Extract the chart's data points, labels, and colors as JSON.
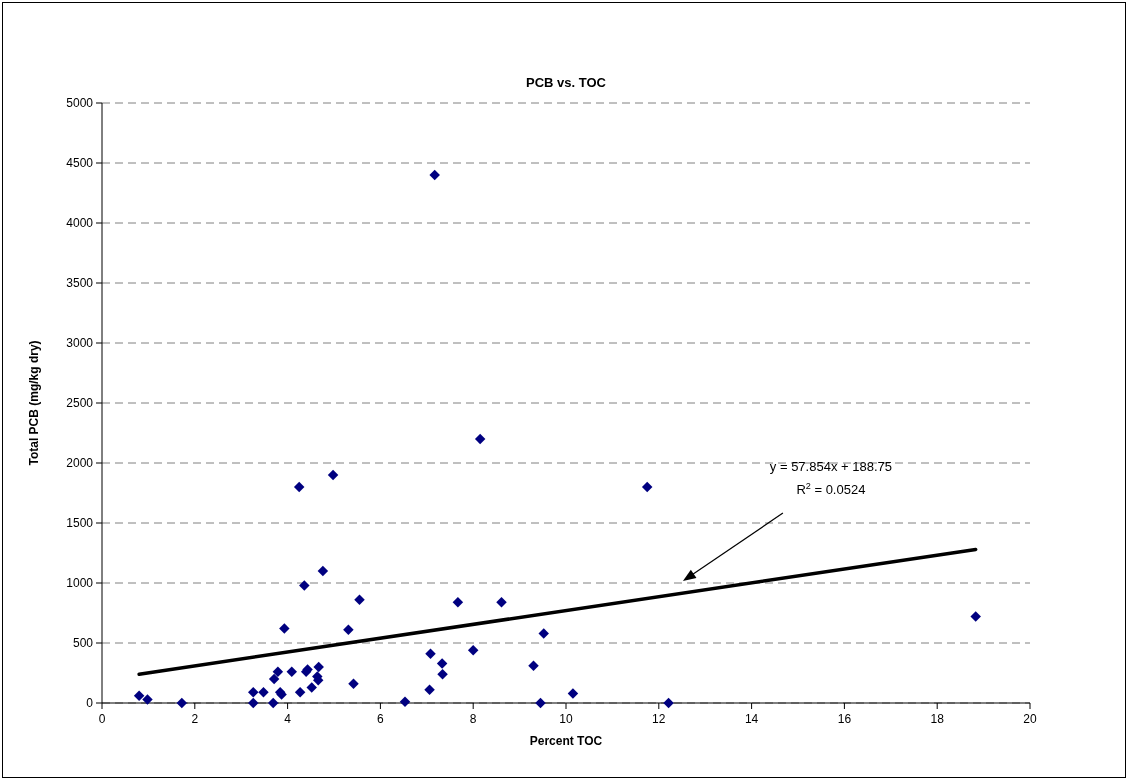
{
  "chart_data": {
    "type": "scatter",
    "title": "PCB vs. TOC",
    "xlabel": "Percent TOC",
    "ylabel": "Total PCB (mg/kg dry)",
    "xlim": [
      0,
      20
    ],
    "xticks": [
      0,
      2,
      4,
      6,
      8,
      10,
      12,
      14,
      16,
      18,
      20
    ],
    "ylim": [
      0,
      5000
    ],
    "yticks": [
      0,
      500,
      1000,
      1500,
      2000,
      2500,
      3000,
      3500,
      4000,
      4500,
      5000
    ],
    "grid": "y",
    "legend": false,
    "marker": "diamond",
    "annotations": [
      "y = 57.854x + 188.75\nR$^{2}$ = 0.0524"
    ],
    "series": [
      {
        "color": "#000080",
        "x": [
          0.8,
          0.98,
          1.72,
          3.26,
          3.26,
          3.48,
          3.69,
          3.71,
          3.79,
          3.84,
          3.87,
          3.93,
          4.09,
          4.27,
          4.36,
          4.4,
          4.43,
          4.52,
          4.64,
          4.66,
          4.67,
          4.76,
          5.31,
          5.42,
          5.55,
          6.53,
          7.06,
          7.08,
          7.33,
          7.34,
          7.67,
          8.0,
          8.61,
          9.3,
          9.45,
          9.52,
          10.15,
          12.21,
          7.17,
          8.15,
          4.98,
          4.25,
          11.75,
          18.83
        ],
        "values": [
          60,
          30,
          0,
          90,
          0,
          90,
          0,
          200,
          260,
          90,
          70,
          620,
          260,
          90,
          980,
          260,
          280,
          130,
          220,
          190,
          300,
          1100,
          610,
          160,
          860,
          10,
          110,
          410,
          330,
          240,
          840,
          440,
          840,
          310,
          0,
          580,
          80,
          0,
          4400,
          2200,
          1900,
          1800,
          1800,
          720
        ]
      },
      {
        "type": "line",
        "marker": "none",
        "color": "#000000",
        "x": [
          0.8,
          18.83
        ],
        "values": [
          240,
          1280
        ]
      }
    ]
  }
}
